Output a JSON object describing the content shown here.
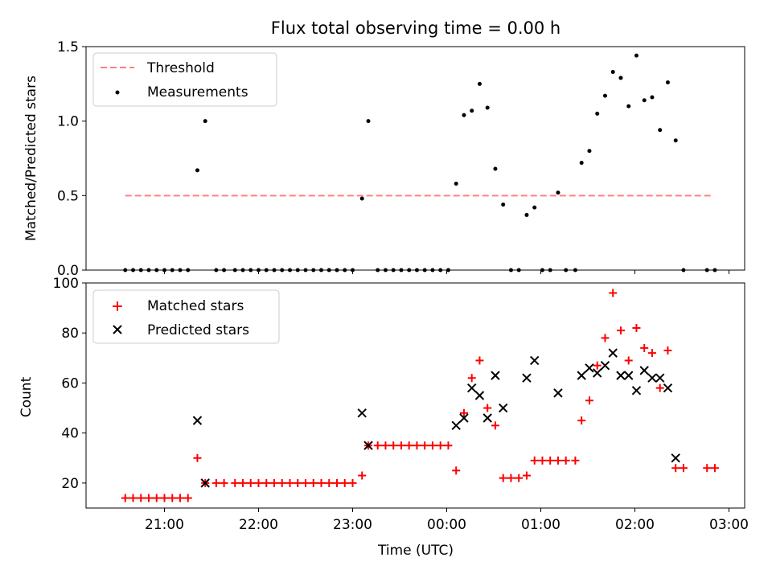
{
  "chart_data": [
    {
      "type": "scatter",
      "title": "Flux total observing time = 0.00 h",
      "ylabel": "Matched/Predicted stars",
      "ylim": [
        0,
        1.5
      ],
      "yticks": [
        0.0,
        0.5,
        1.0,
        1.5
      ],
      "ytick_labels": [
        "0.0",
        "0.5",
        "1.0",
        "1.5"
      ],
      "legend": {
        "position": "top-left",
        "entries": [
          "Threshold",
          "Measurements"
        ]
      },
      "threshold": {
        "name": "Threshold",
        "y": 0.5,
        "x_start": "20:35",
        "x_end": "02:50",
        "color": "#ff7f7f"
      },
      "series": [
        {
          "name": "Measurements",
          "color": "#000000",
          "points": [
            [
              "20:35",
              0.0
            ],
            [
              "20:40",
              0.0
            ],
            [
              "20:45",
              0.0
            ],
            [
              "20:50",
              0.0
            ],
            [
              "20:55",
              0.0
            ],
            [
              "21:00",
              0.0
            ],
            [
              "21:05",
              0.0
            ],
            [
              "21:10",
              0.0
            ],
            [
              "21:15",
              0.0
            ],
            [
              "21:21",
              0.67
            ],
            [
              "21:26",
              1.0
            ],
            [
              "21:33",
              0.0
            ],
            [
              "21:38",
              0.0
            ],
            [
              "21:45",
              0.0
            ],
            [
              "21:50",
              0.0
            ],
            [
              "21:55",
              0.0
            ],
            [
              "22:00",
              0.0
            ],
            [
              "22:05",
              0.0
            ],
            [
              "22:10",
              0.0
            ],
            [
              "22:15",
              0.0
            ],
            [
              "22:20",
              0.0
            ],
            [
              "22:25",
              0.0
            ],
            [
              "22:30",
              0.0
            ],
            [
              "22:35",
              0.0
            ],
            [
              "22:40",
              0.0
            ],
            [
              "22:45",
              0.0
            ],
            [
              "22:50",
              0.0
            ],
            [
              "22:55",
              0.0
            ],
            [
              "23:00",
              0.0
            ],
            [
              "23:06",
              0.48
            ],
            [
              "23:10",
              1.0
            ],
            [
              "23:16",
              0.0
            ],
            [
              "23:21",
              0.0
            ],
            [
              "23:26",
              0.0
            ],
            [
              "23:31",
              0.0
            ],
            [
              "23:36",
              0.0
            ],
            [
              "23:41",
              0.0
            ],
            [
              "23:46",
              0.0
            ],
            [
              "23:51",
              0.0
            ],
            [
              "23:56",
              0.0
            ],
            [
              "00:01",
              0.0
            ],
            [
              "00:06",
              0.58
            ],
            [
              "00:11",
              1.04
            ],
            [
              "00:16",
              1.07
            ],
            [
              "00:21",
              1.25
            ],
            [
              "00:26",
              1.09
            ],
            [
              "00:31",
              0.68
            ],
            [
              "00:36",
              0.44
            ],
            [
              "00:41",
              0.0
            ],
            [
              "00:46",
              0.0
            ],
            [
              "00:51",
              0.37
            ],
            [
              "00:56",
              0.42
            ],
            [
              "01:01",
              0.0
            ],
            [
              "01:06",
              0.0
            ],
            [
              "01:11",
              0.52
            ],
            [
              "01:16",
              0.0
            ],
            [
              "01:22",
              0.0
            ],
            [
              "01:26",
              0.72
            ],
            [
              "01:31",
              0.8
            ],
            [
              "01:36",
              1.05
            ],
            [
              "01:41",
              1.17
            ],
            [
              "01:46",
              1.33
            ],
            [
              "01:51",
              1.29
            ],
            [
              "01:56",
              1.1
            ],
            [
              "02:01",
              1.44
            ],
            [
              "02:06",
              1.14
            ],
            [
              "02:11",
              1.16
            ],
            [
              "02:16",
              0.94
            ],
            [
              "02:21",
              1.26
            ],
            [
              "02:26",
              0.87
            ],
            [
              "02:31",
              0.0
            ],
            [
              "02:46",
              0.0
            ],
            [
              "02:51",
              0.0
            ]
          ]
        }
      ]
    },
    {
      "type": "scatter",
      "xlabel": "Time (UTC)",
      "ylabel": "Count",
      "ylim": [
        10,
        100
      ],
      "yticks": [
        20,
        40,
        60,
        80,
        100
      ],
      "ytick_labels": [
        "20",
        "40",
        "60",
        "80",
        "100"
      ],
      "xticks": [
        "21:00",
        "22:00",
        "23:00",
        "00:00",
        "01:00",
        "02:00",
        "03:00"
      ],
      "x_range": [
        "20:10",
        "03:10"
      ],
      "legend": {
        "position": "top-left",
        "entries": [
          "Matched stars",
          "Predicted stars"
        ]
      },
      "series": [
        {
          "name": "Matched stars",
          "marker": "+",
          "color": "#ff0000",
          "points": [
            [
              "20:35",
              14
            ],
            [
              "20:40",
              14
            ],
            [
              "20:45",
              14
            ],
            [
              "20:50",
              14
            ],
            [
              "20:55",
              14
            ],
            [
              "21:00",
              14
            ],
            [
              "21:05",
              14
            ],
            [
              "21:10",
              14
            ],
            [
              "21:15",
              14
            ],
            [
              "21:21",
              30
            ],
            [
              "21:26",
              20
            ],
            [
              "21:33",
              20
            ],
            [
              "21:38",
              20
            ],
            [
              "21:45",
              20
            ],
            [
              "21:50",
              20
            ],
            [
              "21:55",
              20
            ],
            [
              "22:00",
              20
            ],
            [
              "22:05",
              20
            ],
            [
              "22:10",
              20
            ],
            [
              "22:15",
              20
            ],
            [
              "22:20",
              20
            ],
            [
              "22:25",
              20
            ],
            [
              "22:30",
              20
            ],
            [
              "22:35",
              20
            ],
            [
              "22:40",
              20
            ],
            [
              "22:45",
              20
            ],
            [
              "22:50",
              20
            ],
            [
              "22:55",
              20
            ],
            [
              "23:00",
              20
            ],
            [
              "23:06",
              23
            ],
            [
              "23:10",
              35
            ],
            [
              "23:16",
              35
            ],
            [
              "23:21",
              35
            ],
            [
              "23:26",
              35
            ],
            [
              "23:31",
              35
            ],
            [
              "23:36",
              35
            ],
            [
              "23:41",
              35
            ],
            [
              "23:46",
              35
            ],
            [
              "23:51",
              35
            ],
            [
              "23:56",
              35
            ],
            [
              "00:01",
              35
            ],
            [
              "00:06",
              25
            ],
            [
              "00:11",
              48
            ],
            [
              "00:16",
              62
            ],
            [
              "00:21",
              69
            ],
            [
              "00:26",
              50
            ],
            [
              "00:31",
              43
            ],
            [
              "00:36",
              22
            ],
            [
              "00:41",
              22
            ],
            [
              "00:46",
              22
            ],
            [
              "00:51",
              23
            ],
            [
              "00:56",
              29
            ],
            [
              "01:01",
              29
            ],
            [
              "01:06",
              29
            ],
            [
              "01:11",
              29
            ],
            [
              "01:16",
              29
            ],
            [
              "01:22",
              29
            ],
            [
              "01:26",
              45
            ],
            [
              "01:31",
              53
            ],
            [
              "01:36",
              67
            ],
            [
              "01:41",
              78
            ],
            [
              "01:46",
              96
            ],
            [
              "01:51",
              81
            ],
            [
              "01:56",
              69
            ],
            [
              "02:01",
              82
            ],
            [
              "02:06",
              74
            ],
            [
              "02:11",
              72
            ],
            [
              "02:16",
              58
            ],
            [
              "02:21",
              73
            ],
            [
              "02:26",
              26
            ],
            [
              "02:31",
              26
            ],
            [
              "02:46",
              26
            ],
            [
              "02:51",
              26
            ]
          ]
        },
        {
          "name": "Predicted stars",
          "marker": "x",
          "color": "#000000",
          "points": [
            [
              "21:21",
              45
            ],
            [
              "21:26",
              20
            ],
            [
              "23:06",
              48
            ],
            [
              "23:10",
              35
            ],
            [
              "00:06",
              43
            ],
            [
              "00:11",
              46
            ],
            [
              "00:16",
              58
            ],
            [
              "00:21",
              55
            ],
            [
              "00:26",
              46
            ],
            [
              "00:31",
              63
            ],
            [
              "00:36",
              50
            ],
            [
              "00:51",
              62
            ],
            [
              "00:56",
              69
            ],
            [
              "01:11",
              56
            ],
            [
              "01:26",
              63
            ],
            [
              "01:31",
              66
            ],
            [
              "01:36",
              64
            ],
            [
              "01:41",
              67
            ],
            [
              "01:46",
              72
            ],
            [
              "01:51",
              63
            ],
            [
              "01:56",
              63
            ],
            [
              "02:01",
              57
            ],
            [
              "02:06",
              65
            ],
            [
              "02:11",
              62
            ],
            [
              "02:16",
              62
            ],
            [
              "02:21",
              58
            ],
            [
              "02:26",
              30
            ]
          ]
        }
      ]
    }
  ]
}
